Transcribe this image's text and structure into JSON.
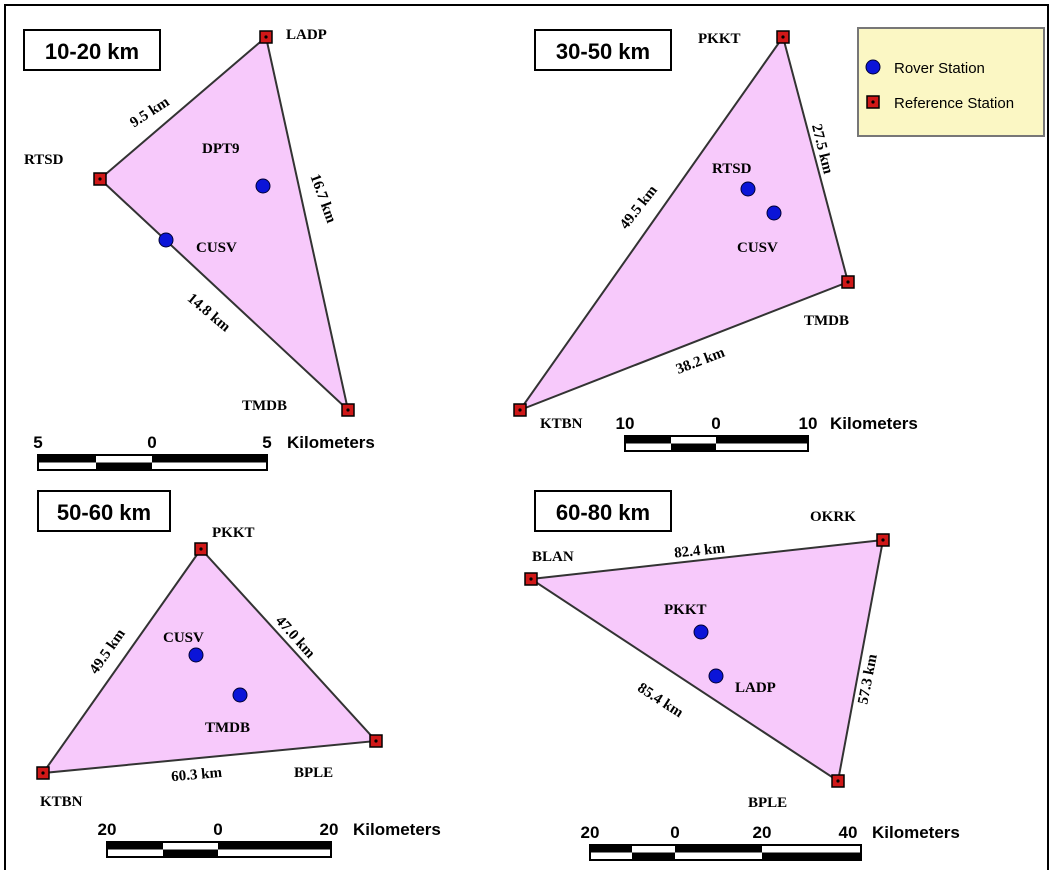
{
  "colors": {
    "triangle_fill": "#f7c9fb",
    "rover": "#0b14d8",
    "reference": "#d01818",
    "legend_bg": "#fbf7c4"
  },
  "legend": {
    "rover_label": "Rover Station",
    "reference_label": "Reference Station"
  },
  "panels": [
    {
      "title": "10-20 km",
      "stations": {
        "a": "LADP",
        "b": "RTSD",
        "c": "TMDB"
      },
      "rovers": {
        "a": "DPT9",
        "b": "CUSV"
      },
      "distances": {
        "a": "9.5 km",
        "b": "16.7 km",
        "c": "14.8 km"
      },
      "scale": {
        "ticks": [
          "5",
          "0",
          "5"
        ],
        "unit": "Kilometers"
      }
    },
    {
      "title": "30-50 km",
      "stations": {
        "a": "PKKT",
        "b": "TMDB",
        "c": "KTBN"
      },
      "rovers": {
        "a": "RTSD",
        "b": "CUSV"
      },
      "distances": {
        "a": "27.5 km",
        "b": "49.5 km",
        "c": "38.2 km"
      },
      "scale": {
        "ticks": [
          "10",
          "0",
          "10"
        ],
        "unit": "Kilometers"
      }
    },
    {
      "title": "50-60 km",
      "stations": {
        "a": "PKKT",
        "b": "KTBN",
        "c": "BPLE"
      },
      "rovers": {
        "a": "CUSV",
        "b": "TMDB"
      },
      "distances": {
        "a": "49.5 km",
        "b": "47.0 km",
        "c": "60.3 km"
      },
      "scale": {
        "ticks": [
          "20",
          "0",
          "20"
        ],
        "unit": "Kilometers"
      }
    },
    {
      "title": "60-80 km",
      "stations": {
        "a": "BLAN",
        "b": "OKRK",
        "c": "BPLE"
      },
      "rovers": {
        "a": "PKKT",
        "b": "LADP"
      },
      "distances": {
        "a": "82.4 km",
        "b": "85.4 km",
        "c": "57.3 km"
      },
      "scale": {
        "ticks": [
          "20",
          "0",
          "20",
          "40"
        ],
        "unit": "Kilometers"
      }
    }
  ]
}
